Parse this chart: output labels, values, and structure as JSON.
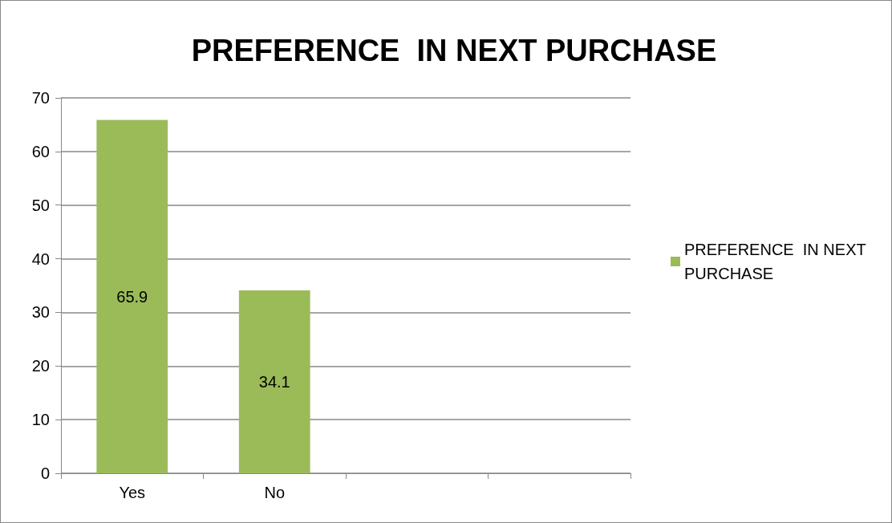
{
  "chart_data": {
    "type": "bar",
    "title": "PREFERENCE  IN NEXT PURCHASE",
    "categories": [
      "Yes",
      "No",
      null,
      null
    ],
    "series": [
      {
        "name": "PREFERENCE  IN NEXT PURCHASE",
        "color": "#9bbb59",
        "values": [
          65.9,
          34.1,
          null,
          null
        ]
      }
    ],
    "ylim": [
      0,
      70
    ],
    "yticks": [
      0,
      10,
      20,
      30,
      40,
      50,
      60,
      70
    ],
    "grid": "y",
    "legend": "right",
    "data_labels": true
  }
}
